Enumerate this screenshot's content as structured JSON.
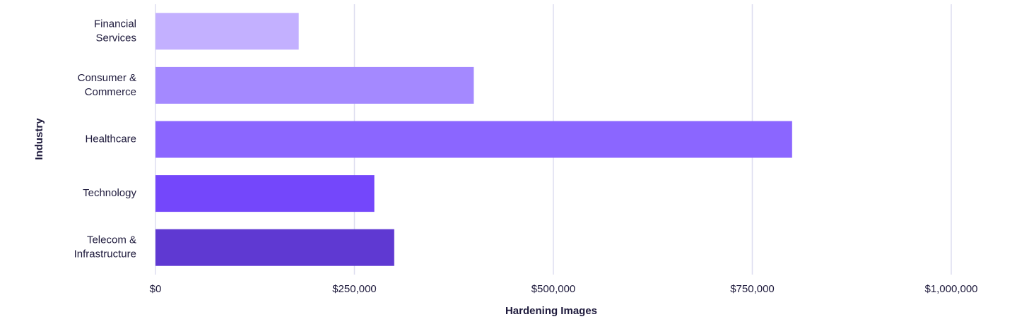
{
  "chart_data": {
    "type": "barh",
    "xlabel": "Hardening Images",
    "ylabel": "Industry",
    "categories": [
      "Financial\nServices",
      "Consumer &\nCommerce",
      "Healthcare",
      "Technology",
      "Telecom &\nInfrastructure"
    ],
    "values": [
      180000,
      400000,
      800000,
      275000,
      300000
    ],
    "colors": [
      "#c3b0ff",
      "#a489ff",
      "#8b66ff",
      "#7447fb",
      "#5f39d2"
    ],
    "xlim": [
      0,
      1000000
    ],
    "xticks": [
      {
        "value": 0,
        "label": "$0"
      },
      {
        "value": 250000,
        "label": "$250,000"
      },
      {
        "value": 500000,
        "label": "$500,000"
      },
      {
        "value": 750000,
        "label": "$750,000"
      },
      {
        "value": 1000000,
        "label": "$1,000,000"
      }
    ],
    "grid": true
  }
}
